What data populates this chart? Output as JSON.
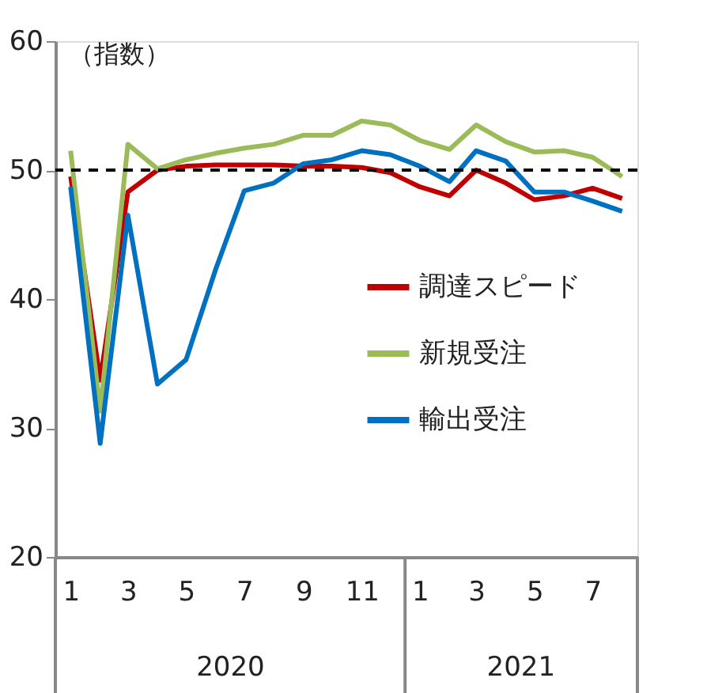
{
  "chart_data": {
    "type": "line",
    "ylabel": "（指数）",
    "x": [
      "2020-01",
      "2020-02",
      "2020-03",
      "2020-04",
      "2020-05",
      "2020-06",
      "2020-07",
      "2020-08",
      "2020-09",
      "2020-10",
      "2020-11",
      "2020-12",
      "2021-01",
      "2021-02",
      "2021-03",
      "2021-04",
      "2021-05",
      "2021-06",
      "2021-07",
      "2021-08"
    ],
    "xlim": [
      "2019-12-16",
      "2021-08-17"
    ],
    "xticks": [
      {
        "value": "2020-01",
        "label": "1"
      },
      {
        "value": "2020-03",
        "label": "3"
      },
      {
        "value": "2020-05",
        "label": "5"
      },
      {
        "value": "2020-07",
        "label": "7"
      },
      {
        "value": "2020-09",
        "label": "9"
      },
      {
        "value": "2020-11",
        "label": "11"
      },
      {
        "value": "2021-01",
        "label": "1"
      },
      {
        "value": "2021-03",
        "label": "3"
      },
      {
        "value": "2021-05",
        "label": "5"
      },
      {
        "value": "2021-07",
        "label": "7"
      }
    ],
    "ylim": [
      20,
      60
    ],
    "yticks": [
      20,
      30,
      40,
      50,
      60
    ],
    "series": [
      {
        "name": "調達スピード",
        "color": "#c00000",
        "values": [
          49.5,
          33.7,
          48.3,
          50.0,
          50.3,
          50.4,
          50.4,
          50.4,
          50.3,
          50.3,
          50.2,
          49.8,
          48.7,
          48.0,
          50.0,
          49.0,
          47.7,
          48.0,
          48.6,
          47.8
        ]
      },
      {
        "name": "新規受注",
        "color": "#9bbb59",
        "values": [
          51.5,
          31.3,
          52.0,
          50.1,
          50.8,
          51.3,
          51.7,
          52.0,
          52.7,
          52.7,
          53.8,
          53.5,
          52.3,
          51.6,
          53.5,
          52.2,
          51.4,
          51.5,
          51.0,
          49.5
        ]
      },
      {
        "name": "輸出受注",
        "color": "#0070c0",
        "values": [
          48.7,
          28.8,
          46.5,
          33.4,
          35.3,
          42.3,
          48.4,
          49.0,
          50.5,
          50.8,
          51.5,
          51.2,
          50.3,
          49.1,
          51.5,
          50.7,
          48.3,
          48.3,
          47.6,
          46.8
        ]
      }
    ],
    "ref_lines": [
      {
        "axis": "y",
        "value": 50,
        "color": "#000000",
        "line_style": "dashed"
      }
    ],
    "annotations": [
      "2020",
      "2021"
    ],
    "legend": "right",
    "grid": false,
    "marker": "none",
    "line_style": "solid"
  }
}
